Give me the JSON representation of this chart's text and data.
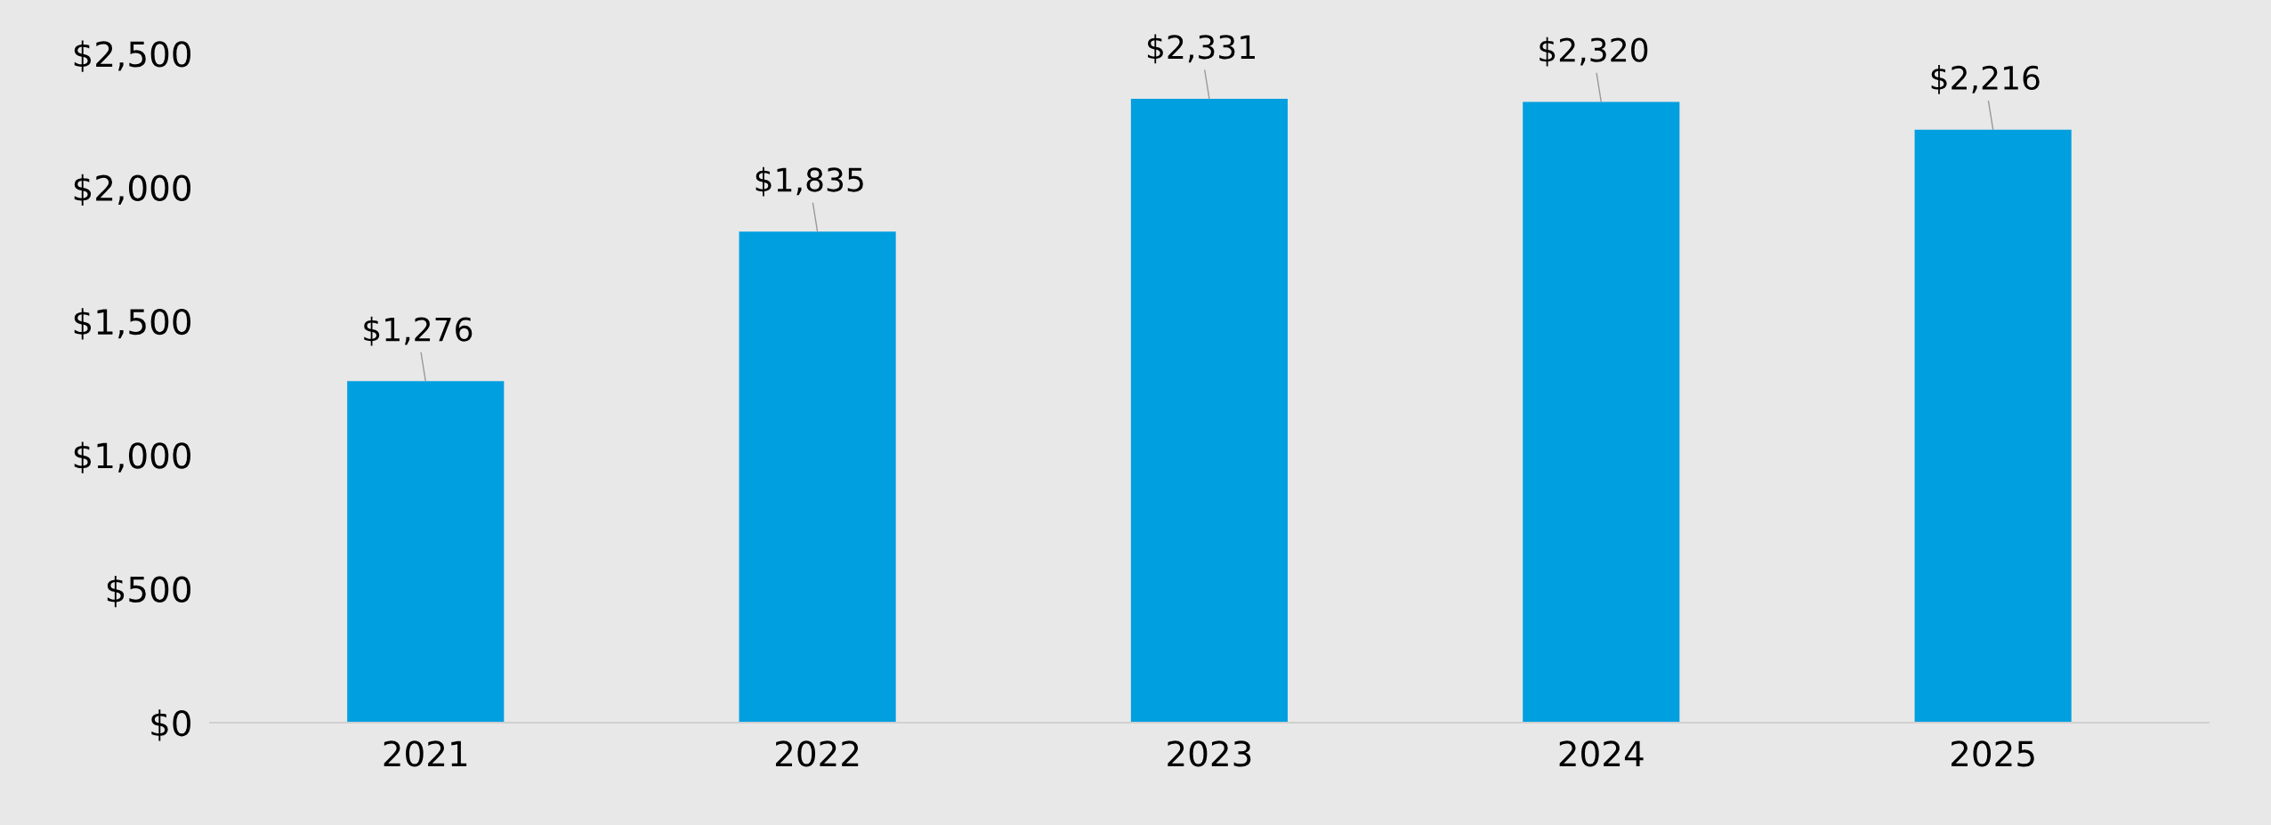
{
  "chart_data": {
    "type": "bar",
    "categories": [
      "2021",
      "2022",
      "2023",
      "2024",
      "2025"
    ],
    "values": [
      1276,
      1835,
      2331,
      2320,
      2216
    ],
    "value_labels": [
      "$1,276",
      "$1,835",
      "$2,331",
      "$2,320",
      "$2,216"
    ],
    "color": "#009fdf",
    "ylim": [
      0,
      2500
    ],
    "yticks": [
      {
        "value": 0,
        "label": "$0"
      },
      {
        "value": 500,
        "label": "$500"
      },
      {
        "value": 1000,
        "label": "$1,000"
      },
      {
        "value": 1500,
        "label": "$1,500"
      },
      {
        "value": 2000,
        "label": "$2,000"
      },
      {
        "value": 2500,
        "label": "$2,500"
      }
    ],
    "grid": false
  }
}
